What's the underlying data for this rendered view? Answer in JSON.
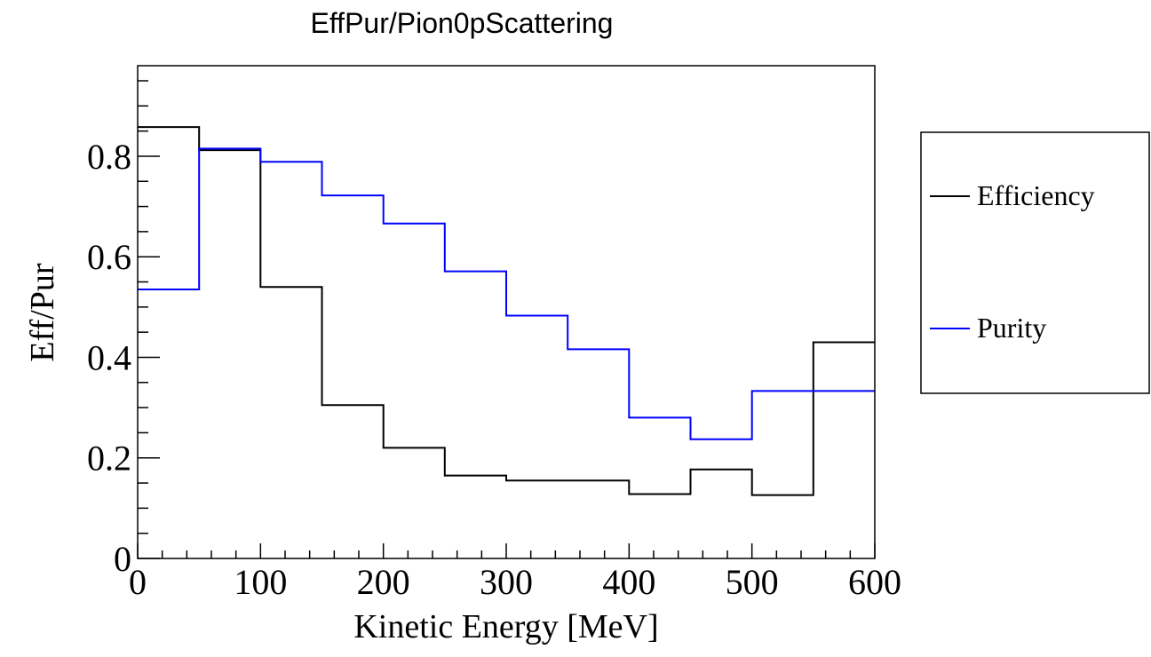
{
  "chart_data": {
    "type": "line",
    "title": "EffPur/Pion0pScattering",
    "xlabel": "Kinetic Energy [MeV]",
    "ylabel": "Eff/Pur",
    "xlim": [
      0,
      600
    ],
    "ylim": [
      0,
      0.98
    ],
    "x_ticks": [
      {
        "value": 0,
        "label": "0"
      },
      {
        "value": 100,
        "label": "100"
      },
      {
        "value": 200,
        "label": "200"
      },
      {
        "value": 300,
        "label": "300"
      },
      {
        "value": 400,
        "label": "400"
      },
      {
        "value": 500,
        "label": "500"
      },
      {
        "value": 600,
        "label": "600"
      }
    ],
    "y_ticks": [
      {
        "value": 0,
        "label": "0"
      },
      {
        "value": 0.2,
        "label": "0.2"
      },
      {
        "value": 0.4,
        "label": "0.4"
      },
      {
        "value": 0.6,
        "label": "0.6"
      },
      {
        "value": 0.8,
        "label": "0.8"
      }
    ],
    "bin_edges": [
      0,
      50,
      100,
      150,
      200,
      250,
      300,
      350,
      400,
      450,
      500,
      550,
      600
    ],
    "grid": false,
    "legend_position": "right",
    "series": [
      {
        "name": "Efficiency",
        "color": "#000000",
        "values": [
          0.858,
          0.812,
          0.54,
          0.305,
          0.22,
          0.165,
          0.155,
          0.155,
          0.128,
          0.177,
          0.126,
          0.43
        ]
      },
      {
        "name": "Purity",
        "color": "#0000ff",
        "values": [
          0.535,
          0.815,
          0.789,
          0.722,
          0.666,
          0.571,
          0.483,
          0.416,
          0.28,
          0.237,
          0.333,
          0.333
        ]
      }
    ]
  }
}
